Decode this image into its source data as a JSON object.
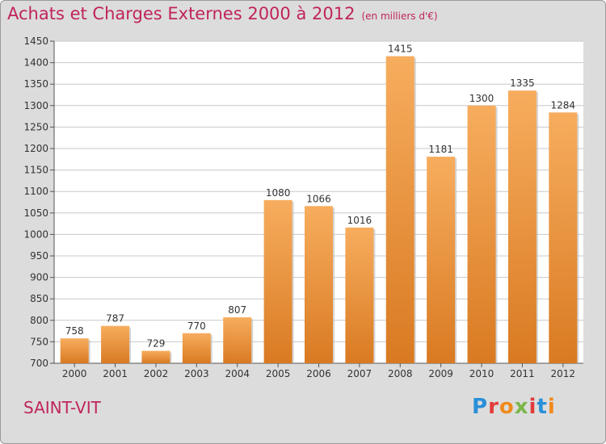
{
  "header": {
    "title": "Achats et Charges Externes 2000 à 2012",
    "subtitle": "(en milliers d'€)"
  },
  "footer": {
    "commune": "SAINT-VIT",
    "logo_text": "Proxiti"
  },
  "colors": {
    "bar": "#f0953a",
    "bar_light": "#f7ad5e",
    "bar_dark": "#d97a22",
    "title": "#c0245c",
    "grid": "#c8c8c8",
    "background": "#dcdcdc",
    "plot_background": "#ffffff"
  },
  "chart_data": {
    "type": "bar",
    "title": "Achats et Charges Externes 2000 à 2012",
    "subtitle": "(en milliers d'€)",
    "categories": [
      "2000",
      "2001",
      "2002",
      "2003",
      "2004",
      "2005",
      "2006",
      "2007",
      "2008",
      "2009",
      "2010",
      "2011",
      "2012"
    ],
    "values": [
      758,
      787,
      729,
      770,
      807,
      1080,
      1066,
      1016,
      1415,
      1181,
      1300,
      1335,
      1284
    ],
    "ylim": [
      700,
      1450
    ],
    "yticks": [
      700,
      750,
      800,
      850,
      900,
      950,
      1000,
      1050,
      1100,
      1150,
      1200,
      1250,
      1300,
      1350,
      1400,
      1450
    ],
    "xlabel": "",
    "ylabel": "",
    "grid": true,
    "data_labels": true
  }
}
